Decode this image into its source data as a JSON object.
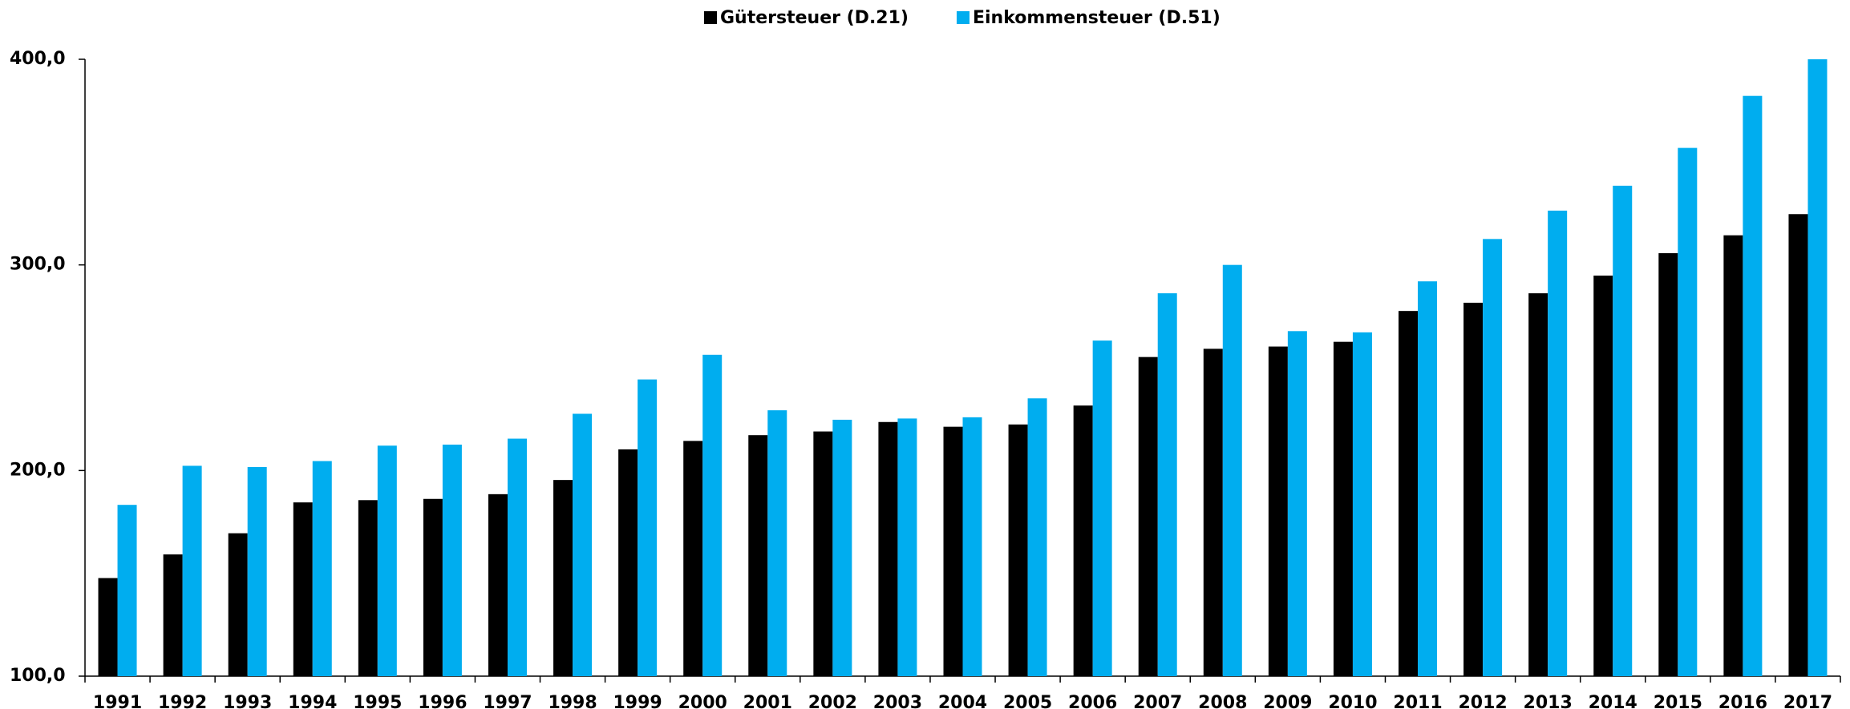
{
  "chart_data": {
    "type": "bar",
    "categories": [
      "1991",
      "1992",
      "1993",
      "1994",
      "1995",
      "1996",
      "1997",
      "1998",
      "1999",
      "2000",
      "2001",
      "2002",
      "2003",
      "2004",
      "2005",
      "2006",
      "2007",
      "2008",
      "2009",
      "2010",
      "2011",
      "2012",
      "2013",
      "2014",
      "2015",
      "2016",
      "2017"
    ],
    "series": [
      {
        "name": "Gütersteuer (D.21)",
        "color": "#000000",
        "values": [
          147.7,
          159.2,
          169.5,
          184.5,
          185.6,
          186.2,
          188.5,
          195.4,
          210.3,
          214.4,
          217.2,
          219.0,
          223.6,
          221.3,
          222.4,
          231.6,
          255.2,
          259.2,
          260.3,
          262.6,
          277.6,
          281.6,
          286.2,
          294.8,
          305.7,
          314.4,
          324.7
        ]
      },
      {
        "name": "Einkommensteuer (D.51)",
        "color": "#00adef",
        "values": [
          183.3,
          202.3,
          201.7,
          204.6,
          212.1,
          212.6,
          215.5,
          227.6,
          244.3,
          256.3,
          229.3,
          224.7,
          225.3,
          225.9,
          235.1,
          263.2,
          286.2,
          300.0,
          267.8,
          267.2,
          292.0,
          312.6,
          326.4,
          338.5,
          356.9,
          382.2,
          400.0
        ]
      }
    ],
    "ylim": [
      100,
      400
    ],
    "yticks": [
      {
        "value": 100,
        "label": "100,0"
      },
      {
        "value": 200,
        "label": "200,0"
      },
      {
        "value": 300,
        "label": "300,0"
      },
      {
        "value": 400,
        "label": "400,0"
      }
    ],
    "grid": false,
    "legend": "top"
  }
}
